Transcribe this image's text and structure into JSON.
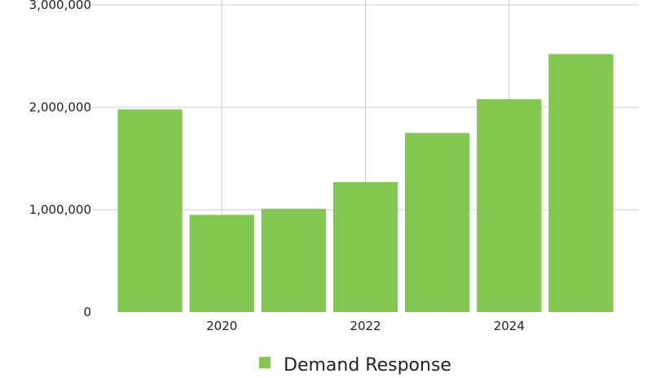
{
  "chart_data": {
    "type": "bar",
    "categories": [
      "2019",
      "2020",
      "2021",
      "2022",
      "2023",
      "2024",
      "2025"
    ],
    "series": [
      {
        "name": "Demand Response",
        "color": "#82c850",
        "values": [
          1980000,
          950000,
          1010000,
          1270000,
          1750000,
          2080000,
          2520000
        ]
      }
    ],
    "x_tick_labels": [
      "2020",
      "2022",
      "2024"
    ],
    "x_tick_values": [
      2020,
      2022,
      2024
    ],
    "y_tick_labels": [
      "0",
      "1,000,000",
      "2,000,000",
      "3,000,000"
    ],
    "y_tick_values": [
      0,
      1000000,
      2000000,
      3000000
    ],
    "ylim": [
      0,
      3000000
    ],
    "grid": true,
    "legend_position": "bottom",
    "title": "",
    "xlabel": "",
    "ylabel": ""
  }
}
